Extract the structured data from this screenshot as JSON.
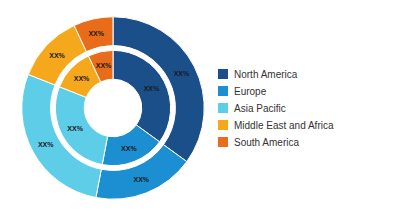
{
  "chart_data": {
    "type": "donut",
    "categories": [
      "North America",
      "Europe",
      "Asia Pacific",
      "Middle East and Africa",
      "South America"
    ],
    "colors": [
      "#1b4f8a",
      "#1b8fd1",
      "#5ecde8",
      "#f5a81c",
      "#e86c1a"
    ],
    "series": [
      {
        "values": [
          35,
          18,
          28,
          12,
          7
        ],
        "value_labels": [
          "XX%",
          "XX%",
          "XX%",
          "XX%",
          "XX%"
        ]
      },
      {
        "values": [
          35,
          18,
          28,
          12,
          7
        ],
        "value_labels": [
          "XX%",
          "XX%",
          "XX%",
          "XX%",
          "XX%"
        ]
      }
    ],
    "data_labels": true,
    "legend": "right"
  }
}
